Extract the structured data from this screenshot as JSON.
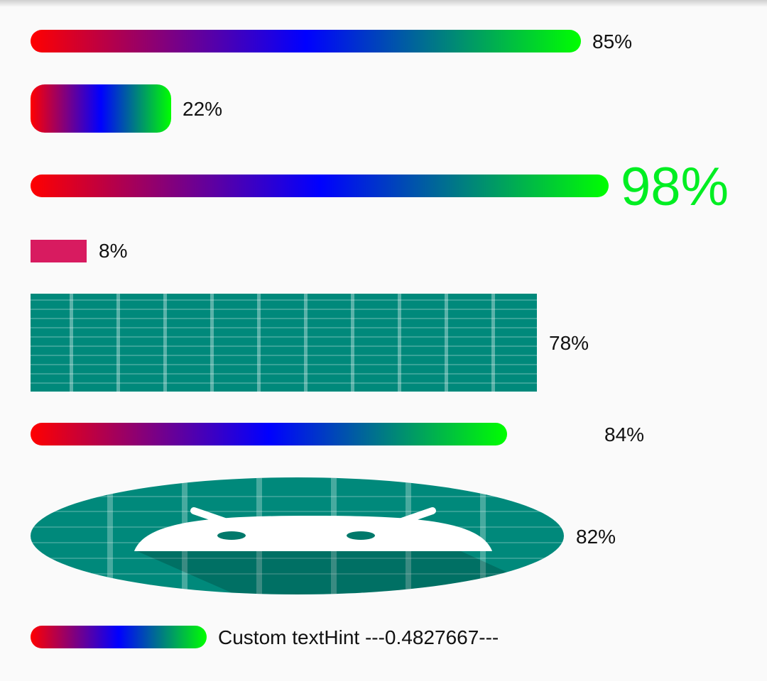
{
  "progress_bars": [
    {
      "name": "gradient-bar-1",
      "value": 85,
      "label": "85%"
    },
    {
      "name": "gradient-bar-2",
      "value": 22,
      "label": "22%"
    },
    {
      "name": "gradient-bar-3",
      "value": 98,
      "label": "98%",
      "label_color": "#00ee22"
    },
    {
      "name": "solid-bar",
      "value": 8,
      "label": "8%",
      "color": "#d81b60"
    },
    {
      "name": "pattern-bar",
      "value": 78,
      "label": "78%",
      "color": "#00897b"
    },
    {
      "name": "gradient-bar-4",
      "value": 84,
      "label": "84%"
    },
    {
      "name": "oval-android-bar",
      "value": 82,
      "label": "82%",
      "icon": "android-icon"
    },
    {
      "name": "custom-hint-bar",
      "value": 48.27667,
      "label": "Custom textHint ---0.4827667---"
    }
  ],
  "colors": {
    "gradient_start": "#ff0000",
    "gradient_mid": "#0000ff",
    "gradient_end": "#00ff00",
    "teal": "#00897b",
    "pink": "#d81b60",
    "background": "#fafafa"
  }
}
